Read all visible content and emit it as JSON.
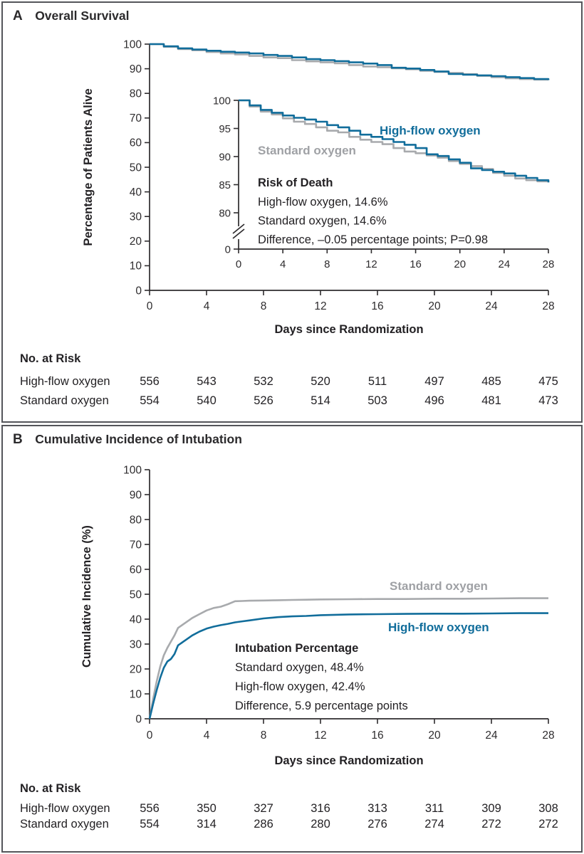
{
  "colors": {
    "high_flow": "#116d9b",
    "standard": "#a8aaad",
    "standard_label": "#9fa1a5",
    "axis": "#2e2c2e",
    "text": "#232124",
    "border": "#54555a"
  },
  "figure": {
    "panel_a": {
      "label": "A",
      "title": "Overall Survival",
      "ylabel": "Percentage of Patients Alive",
      "xlabel": "Days since Randomization",
      "risk_title": "No. at Risk",
      "risk_days": [
        0,
        4,
        8,
        12,
        16,
        20,
        24,
        28
      ],
      "risk_rows": [
        {
          "label": "High-flow oxygen",
          "values": [
            556,
            543,
            532,
            520,
            511,
            497,
            485,
            475
          ]
        },
        {
          "label": "Standard oxygen",
          "values": [
            554,
            540,
            526,
            514,
            503,
            496,
            481,
            473
          ]
        }
      ]
    },
    "panel_b": {
      "label": "B",
      "title": "Cumulative Incidence of Intubation",
      "ylabel": "Cumulative Incidence (%)",
      "xlabel": "Days since Randomization",
      "risk_title": "No. at Risk",
      "risk_days": [
        0,
        4,
        8,
        12,
        16,
        20,
        24,
        28
      ],
      "risk_rows": [
        {
          "label": "High-flow oxygen",
          "values": [
            556,
            350,
            327,
            316,
            313,
            311,
            309,
            308
          ]
        },
        {
          "label": "Standard oxygen",
          "values": [
            554,
            314,
            286,
            280,
            276,
            274,
            272,
            272
          ]
        }
      ]
    }
  },
  "chart_data": [
    {
      "id": "overall-survival-main",
      "type": "line",
      "step": true,
      "title": "Overall Survival",
      "xlabel": "Days since Randomization",
      "ylabel": "Percentage of Patients Alive",
      "xlim": [
        0,
        28
      ],
      "ylim": [
        0,
        100
      ],
      "xticks": [
        0,
        4,
        8,
        12,
        16,
        20,
        24,
        28
      ],
      "yticks": [
        0,
        10,
        20,
        30,
        40,
        50,
        60,
        70,
        80,
        90,
        100
      ],
      "x": [
        0,
        1,
        2,
        3,
        4,
        5,
        6,
        7,
        8,
        9,
        10,
        11,
        12,
        13,
        14,
        15,
        16,
        17,
        18,
        19,
        20,
        21,
        22,
        23,
        24,
        25,
        26,
        27,
        28
      ],
      "series": [
        {
          "name": "High-flow oxygen",
          "color_key": "high_flow",
          "values": [
            100,
            99.1,
            98.3,
            97.8,
            97.3,
            96.9,
            96.6,
            96.2,
            95.6,
            95.2,
            94.6,
            93.9,
            93.5,
            93.1,
            92.6,
            92.1,
            91.5,
            90.4,
            90.1,
            89.5,
            88.9,
            87.9,
            87.6,
            87.3,
            87.0,
            86.6,
            86.2,
            85.8,
            85.4
          ]
        },
        {
          "name": "Standard oxygen",
          "color_key": "standard",
          "values": [
            100,
            98.9,
            98.0,
            97.5,
            96.8,
            96.2,
            95.8,
            95.2,
            94.6,
            94.3,
            93.5,
            93.0,
            92.6,
            92.2,
            91.5,
            90.9,
            90.6,
            90.2,
            89.8,
            89.2,
            88.7,
            88.3,
            87.8,
            87.1,
            86.6,
            86.1,
            85.8,
            85.6,
            85.4
          ]
        }
      ]
    },
    {
      "id": "overall-survival-inset",
      "type": "line",
      "step": true,
      "series_from": "overall-survival-main",
      "xlim": [
        0,
        28
      ],
      "ylim": [
        0,
        100
      ],
      "axis_break": true,
      "xticks": [
        0,
        4,
        8,
        12,
        16,
        20,
        24,
        28
      ],
      "yticks": [
        0,
        80,
        85,
        90,
        95,
        100
      ],
      "curve_labels": [
        {
          "text": "High-flow oxygen",
          "color_key": "high_flow"
        },
        {
          "text": "Standard oxygen",
          "color_key": "standard_label"
        }
      ],
      "annotation": {
        "heading": "Risk of Death",
        "lines": [
          "High-flow oxygen, 14.6%",
          "Standard oxygen, 14.6%",
          "Difference, –0.05 percentage points; P=0.98"
        ]
      }
    },
    {
      "id": "cumulative-incidence",
      "type": "line",
      "step": false,
      "title": "Cumulative Incidence of Intubation",
      "xlabel": "Days since Randomization",
      "ylabel": "Cumulative Incidence (%)",
      "xlim": [
        0,
        28
      ],
      "ylim": [
        0,
        100
      ],
      "xticks": [
        0,
        4,
        8,
        12,
        16,
        20,
        24,
        28
      ],
      "yticks": [
        0,
        10,
        20,
        30,
        40,
        50,
        60,
        70,
        80,
        90,
        100
      ],
      "x": [
        0,
        0.25,
        0.5,
        0.75,
        1,
        1.25,
        1.5,
        1.75,
        2,
        2.5,
        3,
        3.5,
        4,
        4.5,
        5,
        5.5,
        6,
        6.5,
        7,
        8,
        9,
        10,
        11,
        12,
        14,
        16,
        18,
        20,
        22,
        24,
        26,
        28
      ],
      "series": [
        {
          "name": "Standard oxygen",
          "color_key": "standard",
          "values": [
            0,
            8,
            15,
            21,
            25.5,
            28.5,
            31,
            33.5,
            36.5,
            38.5,
            40.5,
            42,
            43.5,
            44.5,
            45,
            46,
            47.2,
            47.3,
            47.4,
            47.5,
            47.6,
            47.7,
            47.8,
            47.9,
            48.0,
            48.1,
            48.1,
            48.2,
            48.2,
            48.3,
            48.4,
            48.4
          ]
        },
        {
          "name": "High-flow oxygen",
          "color_key": "high_flow",
          "values": [
            0,
            6,
            11.5,
            16.5,
            20.5,
            23,
            24,
            26,
            29.5,
            31.5,
            33.5,
            35,
            36.2,
            37,
            37.6,
            38.1,
            38.7,
            39.1,
            39.5,
            40.3,
            40.8,
            41.1,
            41.3,
            41.6,
            41.9,
            42.0,
            42.1,
            42.2,
            42.2,
            42.3,
            42.4,
            42.4
          ]
        }
      ],
      "curve_labels": [
        {
          "text": "Standard oxygen",
          "color_key": "standard_label"
        },
        {
          "text": "High-flow oxygen",
          "color_key": "high_flow"
        }
      ],
      "annotation": {
        "heading": "Intubation Percentage",
        "lines": [
          "Standard oxygen, 48.4%",
          "High-flow oxygen, 42.4%",
          "Difference, 5.9 percentage points"
        ]
      }
    }
  ]
}
